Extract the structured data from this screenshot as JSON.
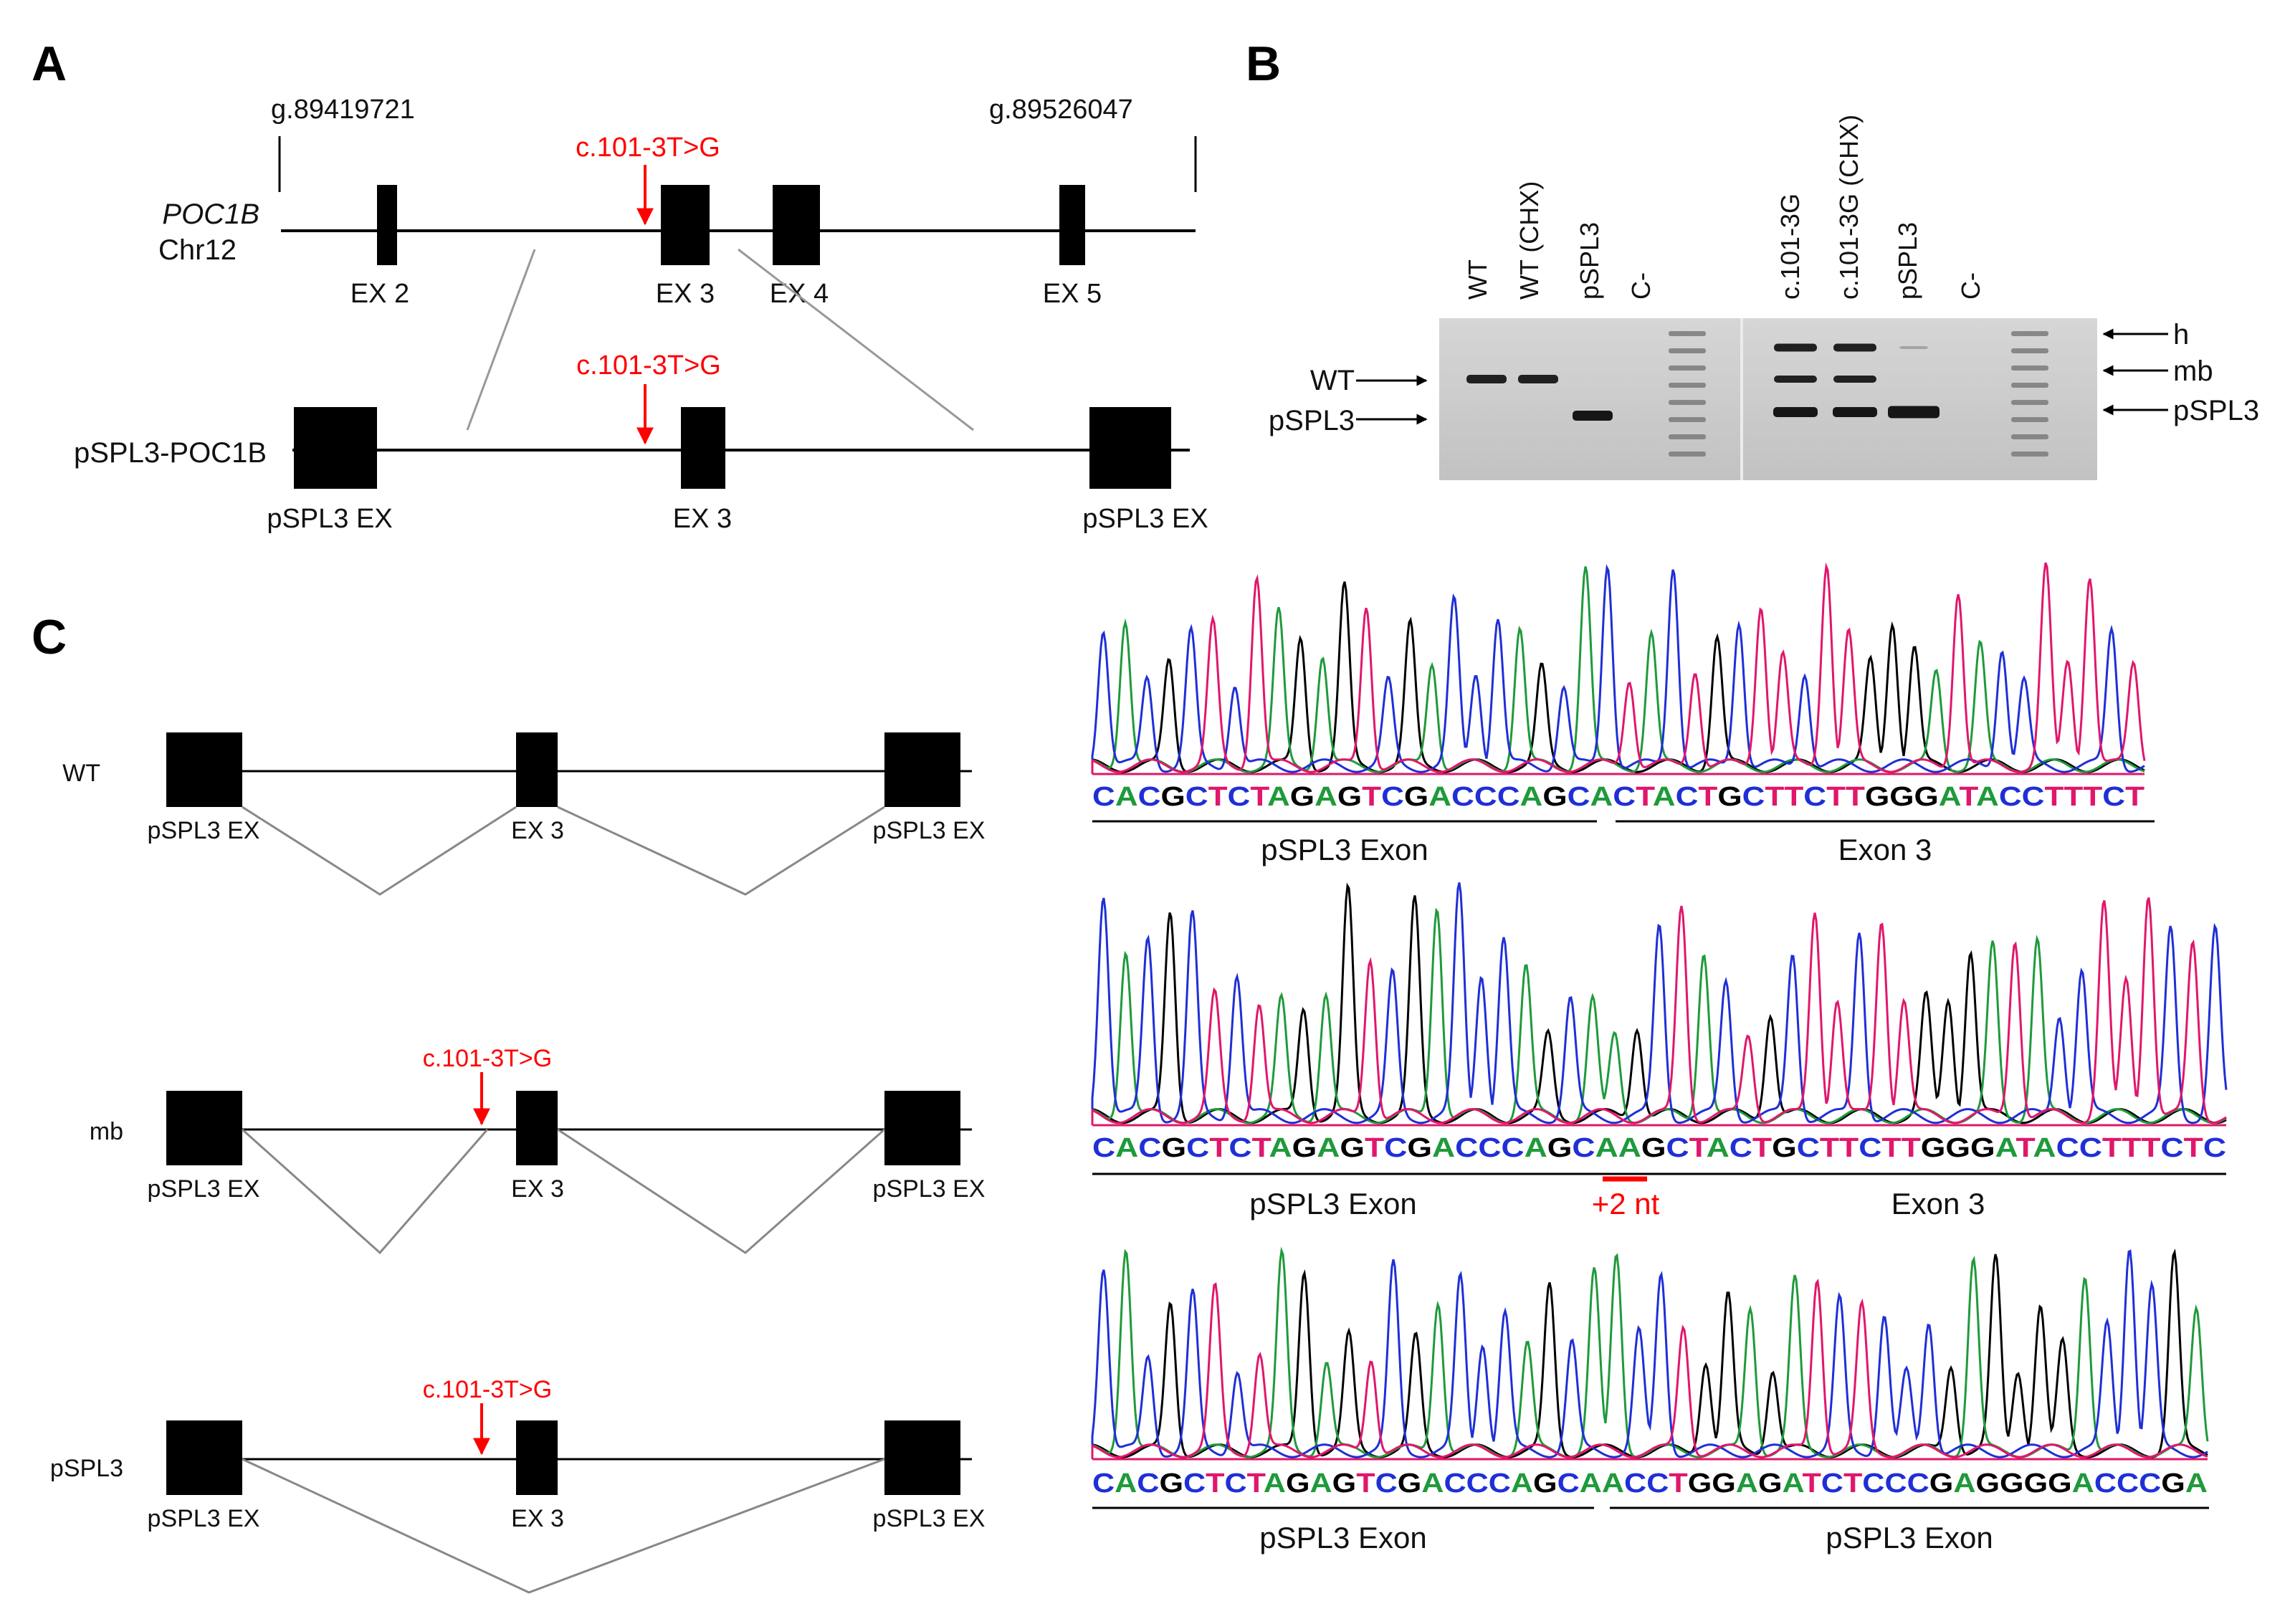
{
  "panels": {
    "a": "A",
    "b": "B",
    "c": "C"
  },
  "panel_a": {
    "coord_start": "g.89419721",
    "coord_end": "g.89526047",
    "gene": "POC1B",
    "chromosome": "Chr12",
    "variant": "c.101-3T>G",
    "exons": [
      "EX 2",
      "EX 3",
      "EX 4",
      "EX 5"
    ],
    "construct": "pSPL3-POC1B",
    "construct_exons": [
      "pSPL3 EX",
      "EX 3",
      "pSPL3 EX"
    ]
  },
  "panel_b": {
    "lanes": [
      "WT",
      "WT (CHX)",
      "pSPL3",
      "C-",
      "c.101-3G",
      "c.101-3G (CHX)",
      "pSPL3",
      "C-"
    ],
    "left_markers": [
      "WT",
      "pSPL3"
    ],
    "right_markers": [
      "h",
      "mb",
      "pSPL3"
    ]
  },
  "panel_c": {
    "rows": [
      {
        "label": "WT",
        "variant": "",
        "exons": [
          "pSPL3 EX",
          "EX 3",
          "pSPL3 EX"
        ]
      },
      {
        "label": "mb",
        "variant": "c.101-3T>G",
        "exons": [
          "pSPL3 EX",
          "EX 3",
          "pSPL3 EX"
        ]
      },
      {
        "label": "pSPL3",
        "variant": "c.101-3T>G",
        "exons": [
          "pSPL3 EX",
          "EX 3",
          "pSPL3 EX"
        ]
      }
    ],
    "traces": [
      {
        "sequence": "CACGCTCTAGAGTCGACCCAGCACTACTGCTTCTTGGGATACCTTTCT",
        "segments": [
          "pSPL3 Exon",
          "Exon 3"
        ],
        "insertion": ""
      },
      {
        "sequence": "CACGCTCTAGAGTCGACCCAGCAAGCTACTGCTTCTTGGGATACCTTTCTC",
        "segments": [
          "pSPL3 Exon",
          "Exon 3"
        ],
        "insertion": "+2 nt"
      },
      {
        "sequence": "CACGCTCTAGAGTCGACCCAGCAACCTGGAGATCTCCCGAGGGGACCCGA",
        "segments": [
          "pSPL3 Exon",
          "pSPL3 Exon"
        ],
        "insertion": ""
      }
    ]
  },
  "colors": {
    "A": "#1f9a3b",
    "C": "#1f2fd6",
    "G": "#000000",
    "T": "#e0176b",
    "baseline": "#e0176b",
    "variant": "#ff0000"
  }
}
